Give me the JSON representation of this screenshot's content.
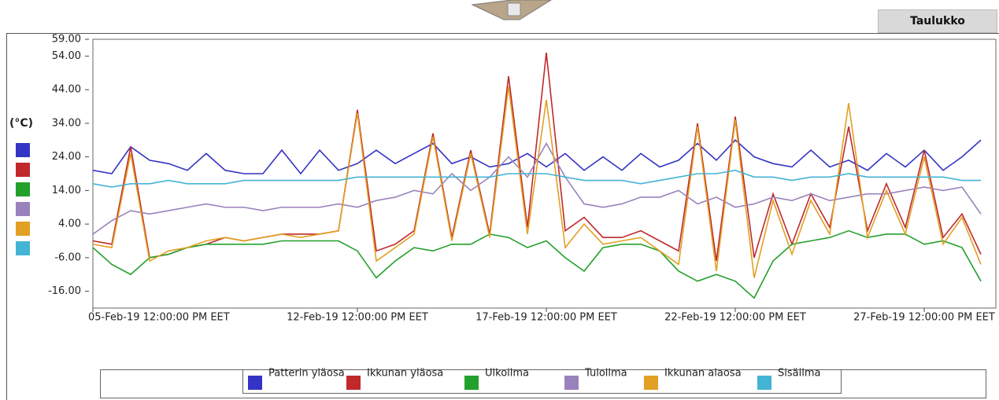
{
  "toolbar": {
    "table_button": "Taulukko"
  },
  "chart_data": {
    "type": "line",
    "y_label": "(°C)",
    "x": [
      "2019-02-05T12:00",
      "2019-02-06T00:00",
      "2019-02-06T12:00",
      "2019-02-07T00:00",
      "2019-02-07T12:00",
      "2019-02-08T00:00",
      "2019-02-08T12:00",
      "2019-02-09T00:00",
      "2019-02-09T12:00",
      "2019-02-10T00:00",
      "2019-02-10T12:00",
      "2019-02-11T00:00",
      "2019-02-11T12:00",
      "2019-02-12T00:00",
      "2019-02-12T12:00",
      "2019-02-13T00:00",
      "2019-02-13T12:00",
      "2019-02-14T00:00",
      "2019-02-14T12:00",
      "2019-02-15T00:00",
      "2019-02-15T12:00",
      "2019-02-16T00:00",
      "2019-02-16T12:00",
      "2019-02-17T00:00",
      "2019-02-17T12:00",
      "2019-02-18T00:00",
      "2019-02-18T12:00",
      "2019-02-19T00:00",
      "2019-02-19T12:00",
      "2019-02-20T00:00",
      "2019-02-20T12:00",
      "2019-02-21T00:00",
      "2019-02-21T12:00",
      "2019-02-22T00:00",
      "2019-02-22T12:00",
      "2019-02-23T00:00",
      "2019-02-23T12:00",
      "2019-02-24T00:00",
      "2019-02-24T12:00",
      "2019-02-25T00:00",
      "2019-02-25T12:00",
      "2019-02-26T00:00",
      "2019-02-26T12:00",
      "2019-02-27T00:00",
      "2019-02-27T12:00",
      "2019-02-28T00:00",
      "2019-02-28T12:00",
      "2019-03-01T00:00"
    ],
    "xlim": [
      "2019-02-05T12:00",
      "2019-03-01T09:30"
    ],
    "xticks": [
      {
        "value": "2019-02-05T12:00",
        "label": "05-Feb-19 12:00:00 PM EET"
      },
      {
        "value": "2019-02-12T12:00",
        "label": "12-Feb-19 12:00:00 PM EET"
      },
      {
        "value": "2019-02-17T12:00",
        "label": "17-Feb-19 12:00:00 PM EET"
      },
      {
        "value": "2019-02-22T12:00",
        "label": "22-Feb-19 12:00:00 PM EET"
      },
      {
        "value": "2019-02-27T12:00",
        "label": "27-Feb-19 12:00:00 PM EET"
      }
    ],
    "ylim": [
      -21,
      59
    ],
    "yticks": [
      {
        "value": 59,
        "label": "59.00"
      },
      {
        "value": 54,
        "label": "54.00"
      },
      {
        "value": 44,
        "label": "44.00"
      },
      {
        "value": 34,
        "label": "34.00"
      },
      {
        "value": 24,
        "label": "24.00"
      },
      {
        "value": 14,
        "label": "14.00"
      },
      {
        "value": 4,
        "label": "4.00"
      },
      {
        "value": -6,
        "label": "-6.00"
      },
      {
        "value": -16,
        "label": "-16.00"
      }
    ],
    "series": [
      {
        "name": "Patterin yläosa",
        "color": "#3434c4",
        "values": [
          20,
          19,
          27,
          23,
          22,
          20,
          25,
          20,
          19,
          19,
          26,
          19,
          26,
          20,
          22,
          26,
          22,
          25,
          28,
          22,
          24,
          21,
          22,
          25,
          21,
          25,
          20,
          24,
          20,
          25,
          21,
          23,
          28,
          23,
          29,
          24,
          22,
          21,
          26,
          21,
          23,
          20,
          25,
          21,
          26,
          20,
          24,
          29
        ]
      },
      {
        "name": "Ikkunan yläosa",
        "color": "#c0282c",
        "values": [
          -1,
          -2,
          27,
          -6,
          -5,
          -3,
          -2,
          0,
          -1,
          0,
          1,
          1,
          1,
          2,
          38,
          -4,
          -2,
          2,
          31,
          0,
          26,
          1,
          48,
          3,
          55,
          2,
          6,
          0,
          0,
          2,
          -1,
          -4,
          34,
          -7,
          36,
          -6,
          13,
          -2,
          13,
          3,
          33,
          2,
          16,
          3,
          26,
          0,
          7,
          -5
        ]
      },
      {
        "name": "Ulkoilma",
        "color": "#24a02c",
        "values": [
          -3,
          -8,
          -11,
          -6,
          -5,
          -3,
          -2,
          -2,
          -2,
          -2,
          -1,
          -1,
          -1,
          -1,
          -4,
          -12,
          -7,
          -3,
          -4,
          -2,
          -2,
          1,
          0,
          -3,
          -1,
          -6,
          -10,
          -3,
          -2,
          -2,
          -4,
          -10,
          -13,
          -11,
          -13,
          -18,
          -7,
          -2,
          -1,
          0,
          2,
          0,
          1,
          1,
          -2,
          -1,
          -3,
          -13
        ]
      },
      {
        "name": "Tuloilma",
        "color": "#9a82bc",
        "values": [
          1,
          5,
          8,
          7,
          8,
          9,
          10,
          9,
          9,
          8,
          9,
          9,
          9,
          10,
          9,
          11,
          12,
          14,
          13,
          19,
          14,
          18,
          24,
          18,
          28,
          18,
          10,
          9,
          10,
          12,
          12,
          14,
          10,
          12,
          9,
          10,
          12,
          11,
          13,
          11,
          12,
          13,
          13,
          14,
          15,
          14,
          15,
          7
        ]
      },
      {
        "name": "Ikkunan alaosa",
        "color": "#e2a024",
        "values": [
          -2,
          -3,
          25,
          -7,
          -4,
          -3,
          -1,
          0,
          -1,
          0,
          1,
          0,
          1,
          2,
          37,
          -7,
          -3,
          1,
          30,
          -1,
          25,
          0,
          45,
          1,
          41,
          -3,
          4,
          -2,
          -1,
          0,
          -4,
          -8,
          33,
          -10,
          35,
          -12,
          11,
          -5,
          11,
          1,
          40,
          0,
          14,
          1,
          24,
          -2,
          6,
          -8
        ]
      },
      {
        "name": "Sisäilma",
        "color": "#44b4d4",
        "values": [
          16,
          15,
          16,
          16,
          17,
          16,
          16,
          16,
          17,
          17,
          17,
          17,
          17,
          17,
          18,
          18,
          18,
          18,
          18,
          18,
          18,
          18,
          19,
          19,
          19,
          18,
          17,
          17,
          17,
          16,
          17,
          18,
          19,
          19,
          20,
          18,
          18,
          17,
          18,
          18,
          19,
          18,
          18,
          18,
          18,
          18,
          17,
          17
        ]
      }
    ]
  }
}
